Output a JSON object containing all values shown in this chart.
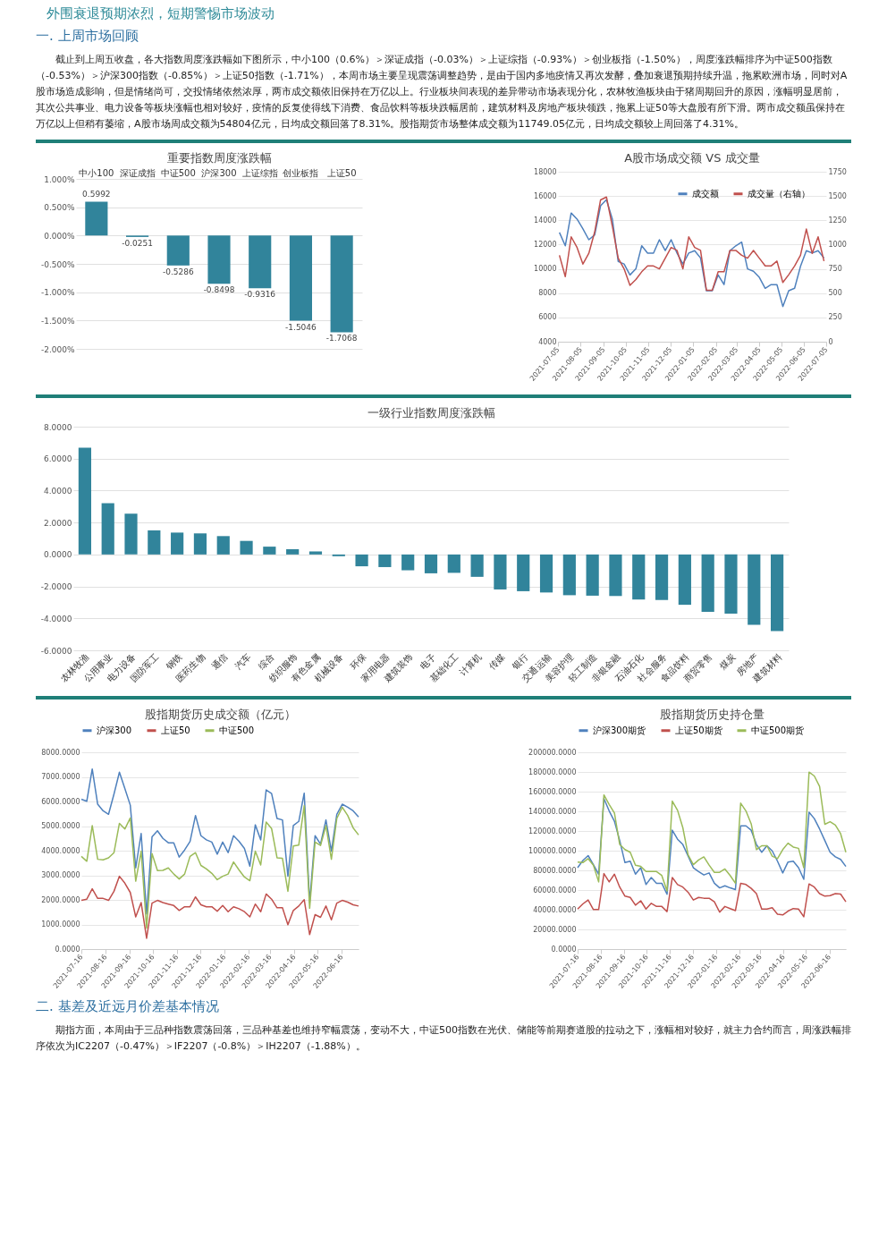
{
  "chart_data": [
    {
      "type": "other",
      "title": "外围衰退预期浓烈，短期警惕市场波动",
      "subtitle": "一. 上周市场回顾",
      "annotations": [
        "截止到上周五收盘，各大指数周度涨跌幅如下图所示，中小100（0.6%）＞深证成指（-0.03%）＞上证综指（-0.93%）＞创业板指（-1.50%），周度涨跌幅排序为中证500指数（-0.53%）＞沪深300指数（-0.85%）＞上证50指数（-1.71%），本周市场主要呈现震荡调整趋势，是由于国内多地疫情又再次发酵，叠加衰退预期持续升温，拖累欧洲市场，同时对A股市场造成影响，但是情绪尚可，交投情绪依然浓厚，两市成交额依旧保持在万亿以上。行业板块间表现的差异带动市场表现分化，农林牧渔板块由于猪周期回升的原因，涨幅明显居前，其次公共事业、电力设备等板块涨幅也相对较好，疫情的反复使得线下消费、食品饮料等板块跌幅居前，建筑材料及房地产板块领跌，拖累上证50等大盘股有所下滑。两市成交额虽保持在万亿以上但稍有萎缩，A股市场周成交额为54804亿元，日均成交额回落了8.31%。股指期货市场整体成交额为11749.05亿元，日均成交额较上周回落了4.31%。"
      ]
    },
    {
      "type": "bar",
      "title": "重要指数周度涨跌幅",
      "categories": [
        "中小100",
        "深证成指",
        "中证500",
        "沪深300",
        "上证综指",
        "创业板指",
        "上证50"
      ],
      "values": [
        0.5992,
        -0.0251,
        -0.5286,
        -0.8498,
        -0.9316,
        -1.5046,
        -1.7068
      ],
      "color": "#31849b",
      "data_labels": true,
      "ylim": [
        -2,
        1
      ],
      "yticks": [
        {
          "value": 1,
          "label": "1.000%"
        },
        {
          "value": 0.5,
          "label": "0.500%"
        },
        {
          "value": 0,
          "label": "0.000%"
        },
        {
          "value": -0.5,
          "label": "-0.500%"
        },
        {
          "value": -1,
          "label": "-1.000%"
        },
        {
          "value": -1.5,
          "label": "-1.500%"
        },
        {
          "value": -2,
          "label": "-2.000%"
        }
      ],
      "grid": "y"
    },
    {
      "type": "line",
      "title": "A股市场成交额 VS 成交量",
      "legend": "top right",
      "grid": "y",
      "x": [
        "2021-07-07",
        "2021-07-15",
        "2021-07-23",
        "2021-07-31",
        "2021-08-08",
        "2021-08-16",
        "2021-08-24",
        "2021-09-01",
        "2021-09-09",
        "2021-09-17",
        "2021-09-25",
        "2021-10-03",
        "2021-10-11",
        "2021-10-19",
        "2021-10-27",
        "2021-11-04",
        "2021-11-12",
        "2021-11-20",
        "2021-11-28",
        "2021-12-06",
        "2021-12-14",
        "2021-12-22",
        "2021-12-30",
        "2022-01-07",
        "2022-01-15",
        "2022-01-23",
        "2022-01-31",
        "2022-02-08",
        "2022-02-16",
        "2022-02-24",
        "2022-03-04",
        "2022-03-12",
        "2022-03-20",
        "2022-03-28",
        "2022-04-05",
        "2022-04-13",
        "2022-04-21",
        "2022-04-29",
        "2022-05-07",
        "2022-05-15",
        "2022-05-23",
        "2022-05-31",
        "2022-06-08",
        "2022-06-16",
        "2022-06-24",
        "2022-07-02"
      ],
      "xlim": [
        "2021-07-05",
        "2022-07-05"
      ],
      "xticks": [
        "2021-07-05",
        "2021-08-05",
        "2021-09-05",
        "2021-10-05",
        "2021-11-05",
        "2021-12-05",
        "2022-01-05",
        "2022-02-05",
        "2022-03-05",
        "2022-04-05",
        "2022-05-05",
        "2022-06-05",
        "2022-07-05"
      ],
      "ylim": [
        4000,
        18000
      ],
      "yticks": [
        4000,
        6000,
        8000,
        10000,
        12000,
        14000,
        16000,
        18000
      ],
      "y2lim": [
        0,
        1750
      ],
      "y2ticks": [
        0,
        250,
        500,
        750,
        1000,
        1250,
        1500,
        1750
      ],
      "series": [
        {
          "name": "成交额",
          "color": "#4f81bd",
          "values": [
            13000,
            11900,
            14600,
            14100,
            13300,
            12400,
            12800,
            15200,
            15700,
            14100,
            10600,
            10400,
            9500,
            10000,
            11900,
            11300,
            11300,
            12400,
            11500,
            12400,
            11300,
            10400,
            11300,
            11500,
            10900,
            8200,
            8200,
            9500,
            8700,
            11500,
            11900,
            12200,
            10000,
            9800,
            9300,
            8400,
            8700,
            8700,
            6900,
            8200,
            8400,
            10200,
            11500,
            11300,
            11500,
            10900
          ]
        },
        {
          "name": "成交量（右轴）",
          "color": "#c0504d",
          "axis": "y2",
          "values": [
            890,
            670,
            1080,
            970,
            800,
            910,
            1130,
            1460,
            1490,
            1190,
            860,
            750,
            580,
            640,
            720,
            780,
            780,
            750,
            860,
            970,
            940,
            750,
            1080,
            970,
            940,
            530,
            530,
            720,
            720,
            940,
            940,
            890,
            860,
            940,
            860,
            780,
            780,
            830,
            610,
            690,
            780,
            890,
            1160,
            910,
            1080,
            830
          ]
        }
      ]
    },
    {
      "type": "bar",
      "title": "一级行业指数周度涨跌幅",
      "categories": [
        "农林牧渔",
        "公用事业",
        "电力设备",
        "国防军工",
        "钢铁",
        "医药生物",
        "通信",
        "汽车",
        "综合",
        "纺织服饰",
        "有色金属",
        "机械设备",
        "环保",
        "家用电器",
        "建筑装饰",
        "电子",
        "基础化工",
        "计算机",
        "传媒",
        "银行",
        "交通运输",
        "美容护理",
        "轻工制造",
        "非银金融",
        "石油石化",
        "社会服务",
        "食品饮料",
        "商贸零售",
        "煤炭",
        "房地产",
        "建筑材料"
      ],
      "values": [
        6.68,
        3.21,
        2.55,
        1.51,
        1.37,
        1.32,
        1.15,
        0.85,
        0.49,
        0.33,
        0.19,
        -0.11,
        -0.74,
        -0.79,
        -0.99,
        -1.18,
        -1.15,
        -1.4,
        -2.19,
        -2.3,
        -2.38,
        -2.55,
        -2.58,
        -2.6,
        -2.82,
        -2.85,
        -3.15,
        -3.59,
        -3.7,
        -4.41,
        -4.79
      ],
      "color": "#31849b",
      "ylim": [
        -6,
        8
      ],
      "yticks": [
        {
          "value": 8,
          "label": "8.0000"
        },
        {
          "value": 6,
          "label": "6.0000"
        },
        {
          "value": 4,
          "label": "4.0000"
        },
        {
          "value": 2,
          "label": "2.0000"
        },
        {
          "value": 0,
          "label": "0.0000"
        },
        {
          "value": -2,
          "label": "-2.0000"
        },
        {
          "value": -4,
          "label": "-4.0000"
        },
        {
          "value": -6,
          "label": "-6.0000"
        }
      ],
      "grid": "y"
    },
    {
      "type": "line",
      "title": "股指期货历史成交额（亿元）",
      "legend": "top",
      "grid": "y",
      "x": [
        "2021-07-16",
        "2021-07-23",
        "2021-07-30",
        "2021-08-06",
        "2021-08-13",
        "2021-08-20",
        "2021-08-27",
        "2021-09-03",
        "2021-09-10",
        "2021-09-17",
        "2021-09-24",
        "2021-10-01",
        "2021-10-08",
        "2021-10-15",
        "2021-10-22",
        "2021-10-29",
        "2021-11-05",
        "2021-11-12",
        "2021-11-19",
        "2021-11-26",
        "2021-12-03",
        "2021-12-10",
        "2021-12-17",
        "2021-12-24",
        "2021-12-31",
        "2022-01-07",
        "2022-01-14",
        "2022-01-21",
        "2022-01-28",
        "2022-02-04",
        "2022-02-11",
        "2022-02-18",
        "2022-02-25",
        "2022-03-04",
        "2022-03-11",
        "2022-03-18",
        "2022-03-25",
        "2022-04-01",
        "2022-04-08",
        "2022-04-15",
        "2022-04-22",
        "2022-04-29",
        "2022-05-06",
        "2022-05-13",
        "2022-05-20",
        "2022-05-27",
        "2022-06-03",
        "2022-06-10",
        "2022-06-17",
        "2022-06-24",
        "2022-07-01",
        "2022-07-08"
      ],
      "xlim": [
        "2021-07-16",
        "2022-07-08"
      ],
      "xticks": [
        "2021-07-16",
        "2021-08-16",
        "2021-09-16",
        "2021-10-16",
        "2021-11-16",
        "2021-12-16",
        "2022-01-16",
        "2022-02-16",
        "2022-03-16",
        "2022-04-16",
        "2022-05-16",
        "2022-06-16"
      ],
      "ylim": [
        0,
        8000
      ],
      "yticks": [
        {
          "value": 0,
          "label": "0.0000"
        },
        {
          "value": 1000,
          "label": "1000.0000"
        },
        {
          "value": 2000,
          "label": "2000.0000"
        },
        {
          "value": 3000,
          "label": "3000.0000"
        },
        {
          "value": 4000,
          "label": "4000.0000"
        },
        {
          "value": 5000,
          "label": "5000.0000"
        },
        {
          "value": 6000,
          "label": "6000.0000"
        },
        {
          "value": 7000,
          "label": "7000.0000"
        },
        {
          "value": 8000,
          "label": "8000.0000"
        }
      ],
      "series": [
        {
          "name": "沪深300",
          "color": "#4f81bd",
          "values": [
            6090,
            6010,
            7320,
            5890,
            5620,
            5480,
            6300,
            7190,
            6530,
            5850,
            3300,
            4700,
            1430,
            4560,
            4810,
            4500,
            4320,
            4320,
            3740,
            4030,
            4380,
            5430,
            4610,
            4440,
            4350,
            3860,
            4350,
            3920,
            4610,
            4380,
            4090,
            3370,
            5050,
            4440,
            6470,
            6320,
            5310,
            5250,
            2960,
            5020,
            5190,
            6340,
            1890,
            4610,
            4270,
            5250,
            3980,
            5480,
            5890,
            5770,
            5620,
            5370
          ]
        },
        {
          "name": "上证50",
          "color": "#c0504d",
          "values": [
            1980,
            2030,
            2450,
            2060,
            2060,
            1980,
            2350,
            2960,
            2680,
            2300,
            1310,
            1890,
            440,
            1870,
            1980,
            1890,
            1830,
            1770,
            1570,
            1720,
            1720,
            2120,
            1800,
            1720,
            1720,
            1540,
            1770,
            1520,
            1720,
            1640,
            1520,
            1310,
            1830,
            1520,
            2240,
            2030,
            1680,
            1680,
            990,
            1570,
            1750,
            2010,
            590,
            1400,
            1290,
            1750,
            1190,
            1870,
            1980,
            1910,
            1800,
            1750
          ]
        },
        {
          "name": "中证500",
          "color": "#9bbb59",
          "values": [
            3770,
            3570,
            5020,
            3650,
            3630,
            3710,
            3920,
            5110,
            4880,
            5330,
            2760,
            3980,
            850,
            3880,
            3190,
            3200,
            3300,
            3050,
            2850,
            3050,
            3770,
            3920,
            3400,
            3260,
            3080,
            2820,
            2960,
            3050,
            3540,
            3220,
            2930,
            2780,
            3980,
            3420,
            5160,
            4900,
            3710,
            3690,
            2350,
            4190,
            4230,
            5830,
            1660,
            4350,
            4210,
            5020,
            3650,
            5310,
            5770,
            5430,
            4930,
            4640
          ]
        }
      ]
    },
    {
      "type": "line",
      "title": "股指期货历史持仓量",
      "legend": "top",
      "grid": "y",
      "x": [
        "2021-07-16",
        "2021-07-23",
        "2021-07-30",
        "2021-08-06",
        "2021-08-13",
        "2021-08-20",
        "2021-08-27",
        "2021-09-03",
        "2021-09-10",
        "2021-09-17",
        "2021-09-24",
        "2021-10-01",
        "2021-10-08",
        "2021-10-15",
        "2021-10-22",
        "2021-10-29",
        "2021-11-05",
        "2021-11-12",
        "2021-11-19",
        "2021-11-26",
        "2021-12-03",
        "2021-12-10",
        "2021-12-17",
        "2021-12-24",
        "2021-12-31",
        "2022-01-07",
        "2022-01-14",
        "2022-01-21",
        "2022-01-28",
        "2022-02-04",
        "2022-02-11",
        "2022-02-18",
        "2022-02-25",
        "2022-03-04",
        "2022-03-11",
        "2022-03-18",
        "2022-03-25",
        "2022-04-01",
        "2022-04-08",
        "2022-04-15",
        "2022-04-22",
        "2022-04-29",
        "2022-05-06",
        "2022-05-13",
        "2022-05-20",
        "2022-05-27",
        "2022-06-03",
        "2022-06-10",
        "2022-06-17",
        "2022-06-24",
        "2022-07-01",
        "2022-07-08"
      ],
      "xlim": [
        "2021-07-16",
        "2022-07-08"
      ],
      "xticks": [
        "2021-07-16",
        "2021-08-16",
        "2021-09-16",
        "2021-10-16",
        "2021-11-16",
        "2021-12-16",
        "2022-01-16",
        "2022-02-16",
        "2022-03-16",
        "2022-04-16",
        "2022-05-16",
        "2022-06-16"
      ],
      "ylim": [
        0,
        200000
      ],
      "yticks": [
        {
          "value": 0,
          "label": "0.0000"
        },
        {
          "value": 20000,
          "label": "20000.0000"
        },
        {
          "value": 40000,
          "label": "40000.0000"
        },
        {
          "value": 60000,
          "label": "60000.0000"
        },
        {
          "value": 80000,
          "label": "80000.0000"
        },
        {
          "value": 100000,
          "label": "100000.0000"
        },
        {
          "value": 120000,
          "label": "120000.0000"
        },
        {
          "value": 140000,
          "label": "140000.0000"
        },
        {
          "value": 160000,
          "label": "160000.0000"
        },
        {
          "value": 180000,
          "label": "180000.0000"
        },
        {
          "value": 200000,
          "label": "200000.0000"
        }
      ],
      "series": [
        {
          "name": "沪深300期货",
          "color": "#4f81bd",
          "values": [
            82700,
            90000,
            95000,
            85800,
            76100,
            153000,
            140400,
            129900,
            110300,
            87900,
            89300,
            76100,
            82700,
            65600,
            72700,
            66900,
            66900,
            55700,
            120800,
            111600,
            106300,
            94500,
            82700,
            78800,
            75300,
            77400,
            66900,
            62200,
            64300,
            62200,
            60400,
            125200,
            125200,
            120800,
            106300,
            98400,
            105000,
            99800,
            89300,
            77400,
            88500,
            89300,
            82700,
            70900,
            139100,
            132600,
            122100,
            110300,
            98400,
            93700,
            91100,
            84000
          ]
        },
        {
          "name": "上证50期货",
          "color": "#c0504d",
          "values": [
            40700,
            45900,
            49900,
            40200,
            40200,
            76700,
            68300,
            76100,
            63000,
            53800,
            52500,
            44600,
            49100,
            40700,
            46500,
            43300,
            43300,
            38100,
            72700,
            65600,
            63000,
            57800,
            49900,
            52500,
            51700,
            51700,
            48000,
            37500,
            43300,
            41200,
            39100,
            66900,
            65600,
            61700,
            56400,
            40700,
            40700,
            42000,
            35400,
            34700,
            38600,
            41200,
            40700,
            32800,
            66200,
            63000,
            56400,
            53800,
            54300,
            56400,
            55900,
            48000
          ]
        },
        {
          "name": "中证500期货",
          "color": "#9bbb59",
          "values": [
            88500,
            87900,
            91900,
            85300,
            68300,
            156700,
            147000,
            138300,
            106300,
            101100,
            98400,
            85300,
            84000,
            78800,
            78800,
            78800,
            74800,
            59100,
            150400,
            141000,
            123400,
            95800,
            85800,
            90600,
            93700,
            85300,
            78000,
            78000,
            81400,
            74800,
            66900,
            148300,
            140400,
            127300,
            101100,
            105000,
            105000,
            94500,
            91900,
            101100,
            107600,
            103700,
            102400,
            82700,
            179800,
            175900,
            165400,
            126800,
            129400,
            126000,
            117300,
            98400
          ]
        }
      ]
    },
    {
      "type": "other",
      "title": "二. 基差及近远月价差基本情况",
      "annotations": [
        "期指方面，本周由于三品种指数震荡回落，三品种基差也维持窄幅震荡，变动不大，中证500指数在光伏、储能等前期赛道股的拉动之下，涨幅相对较好，就主力合约而言，周涨跌幅排序依次为IC2207（-0.47%）＞IF2207（-0.8%）＞IH2207（-1.88%）。"
      ]
    }
  ]
}
